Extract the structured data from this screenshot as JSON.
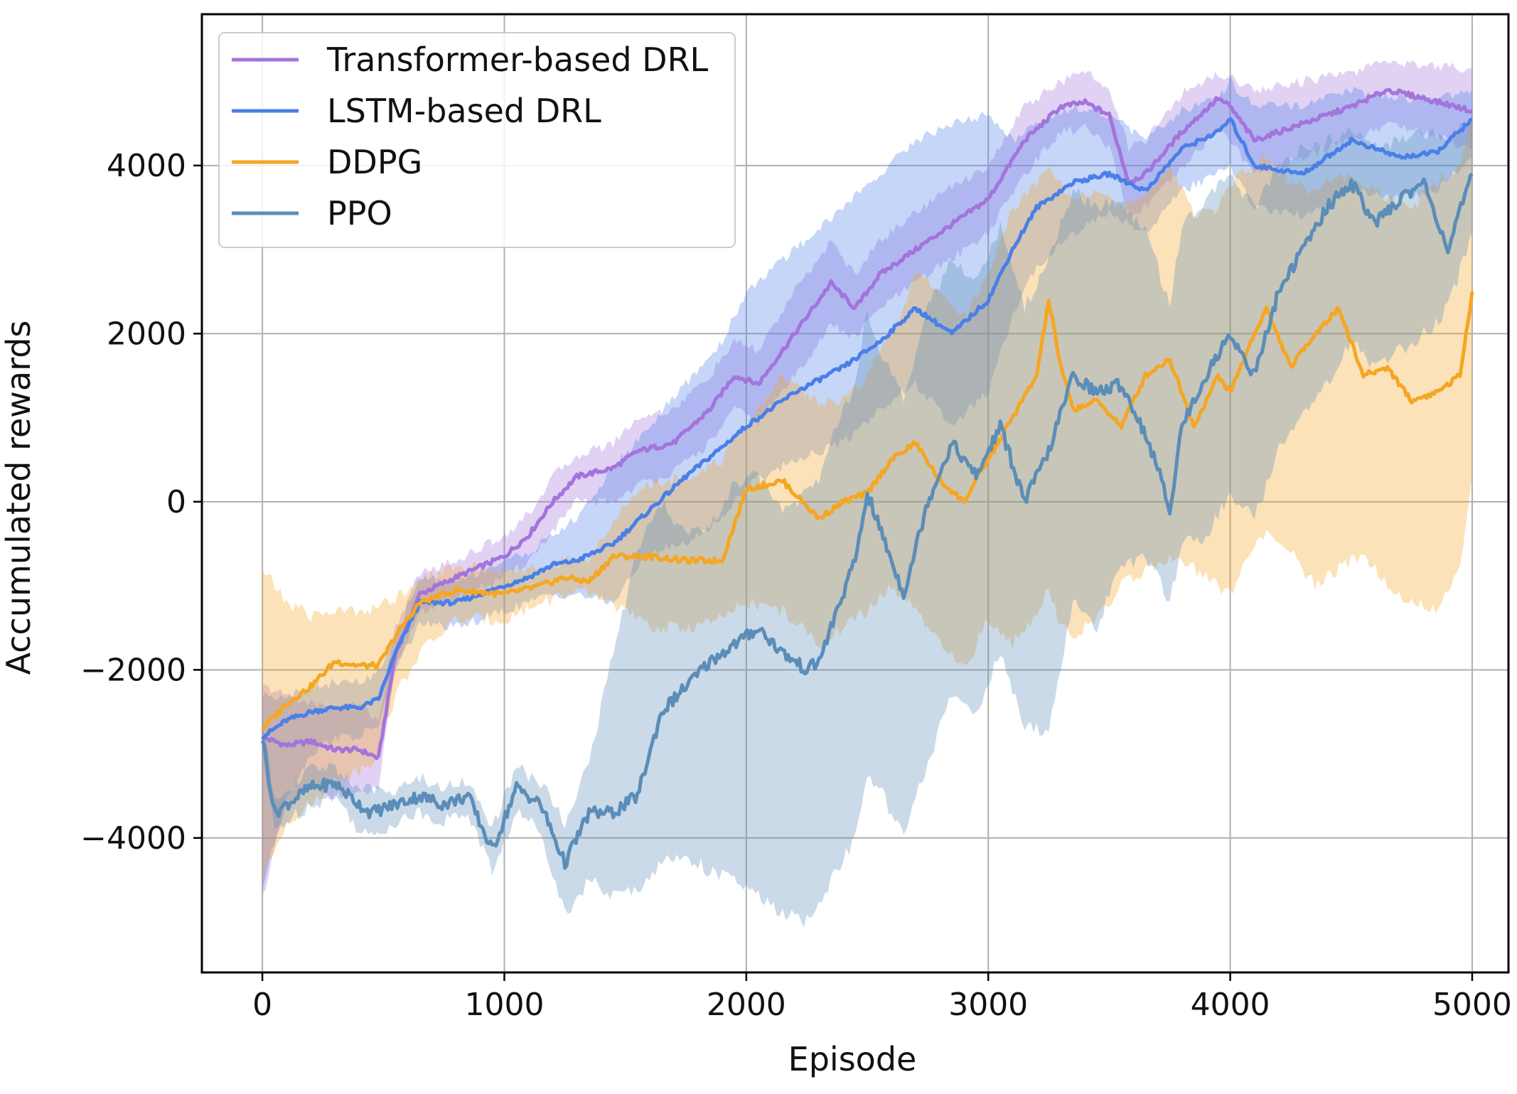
{
  "chart_data": {
    "type": "line",
    "title": "",
    "xlabel": "Episode",
    "ylabel": "Accumulated rewards",
    "xlim": [
      -250,
      5150
    ],
    "ylim": [
      -5600,
      5800
    ],
    "xticks": [
      0,
      1000,
      2000,
      3000,
      4000,
      5000
    ],
    "xtick_labels": [
      "0",
      "1000",
      "2000",
      "3000",
      "4000",
      "5000"
    ],
    "yticks": [
      -4000,
      -2000,
      0,
      2000,
      4000
    ],
    "ytick_labels": [
      "−4000",
      "−2000",
      "0",
      "2000",
      "4000"
    ],
    "grid": true,
    "legend_position": "top-left",
    "series": [
      {
        "name": "Transformer-based DRL",
        "color": "#a374dc",
        "x": [
          0,
          100,
          200,
          300,
          400,
          480,
          550,
          650,
          800,
          1000,
          1100,
          1200,
          1300,
          1450,
          1550,
          1700,
          1850,
          1950,
          2050,
          2200,
          2350,
          2450,
          2550,
          2700,
          2850,
          3000,
          3150,
          3300,
          3400,
          3500,
          3580,
          3650,
          3800,
          3950,
          4000,
          4100,
          4300,
          4500,
          4650,
          4800,
          5000
        ],
        "values": [
          -2800,
          -2900,
          -2850,
          -2950,
          -2950,
          -3050,
          -1800,
          -1100,
          -900,
          -650,
          -400,
          0,
          300,
          400,
          600,
          700,
          1100,
          1500,
          1400,
          2000,
          2600,
          2300,
          2700,
          3000,
          3300,
          3600,
          4300,
          4700,
          4750,
          4600,
          3800,
          3900,
          4400,
          4800,
          4700,
          4300,
          4500,
          4700,
          4900,
          4800,
          4650
        ],
        "band_lower": [
          -4700,
          -3600,
          -3400,
          -3500,
          -3500,
          -3400,
          -2000,
          -1300,
          -1150,
          -900,
          -700,
          -350,
          0,
          0,
          200,
          350,
          700,
          1100,
          950,
          1500,
          2100,
          1950,
          2300,
          2600,
          2900,
          3200,
          3900,
          4400,
          4450,
          4200,
          3400,
          3500,
          3950,
          4450,
          4300,
          3900,
          4100,
          4300,
          4500,
          4400,
          4200
        ],
        "band_upper": [
          -2200,
          -2300,
          -2400,
          -2450,
          -2400,
          -2600,
          -1500,
          -850,
          -700,
          -400,
          -150,
          300,
          550,
          700,
          1000,
          1100,
          1500,
          1900,
          1800,
          2500,
          3100,
          2700,
          3100,
          3450,
          3750,
          4000,
          4700,
          5000,
          5100,
          4950,
          4200,
          4300,
          4850,
          5100,
          5050,
          4900,
          5000,
          5100,
          5250,
          5200,
          5150
        ]
      },
      {
        "name": "LSTM-based DRL",
        "color": "#4a7fe8",
        "x": [
          0,
          100,
          200,
          300,
          400,
          480,
          550,
          650,
          800,
          1000,
          1100,
          1200,
          1300,
          1450,
          1600,
          1750,
          1900,
          2000,
          2200,
          2400,
          2550,
          2700,
          2850,
          3000,
          3100,
          3200,
          3350,
          3500,
          3650,
          3800,
          3950,
          4000,
          4100,
          4300,
          4500,
          4700,
          4850,
          5000
        ],
        "values": [
          -2800,
          -2600,
          -2500,
          -2450,
          -2450,
          -2350,
          -1800,
          -1200,
          -1200,
          -1000,
          -900,
          -750,
          -700,
          -500,
          -100,
          300,
          650,
          900,
          1300,
          1600,
          1900,
          2300,
          2000,
          2400,
          3000,
          3500,
          3800,
          3900,
          3700,
          4200,
          4400,
          4550,
          4000,
          3900,
          4300,
          4100,
          4150,
          4550
        ],
        "band_lower": [
          -4600,
          -3500,
          -3000,
          -2800,
          -2800,
          -2650,
          -2000,
          -1450,
          -1500,
          -1300,
          -1200,
          -1100,
          -1100,
          -1200,
          -600,
          -500,
          -200,
          200,
          500,
          700,
          1100,
          1400,
          900,
          1300,
          2200,
          2800,
          3200,
          3450,
          3200,
          3700,
          3900,
          4000,
          3500,
          3400,
          3700,
          3600,
          3700,
          4100
        ],
        "band_upper": [
          -2300,
          -2300,
          -2200,
          -2150,
          -2150,
          -2050,
          -1600,
          -900,
          -950,
          -700,
          -600,
          -400,
          -200,
          400,
          900,
          1400,
          1900,
          2500,
          3000,
          3500,
          3900,
          4300,
          4500,
          4600,
          4300,
          4500,
          4700,
          4600,
          4300,
          4650,
          4800,
          5000,
          4700,
          4700,
          4900,
          4800,
          4800,
          4900
        ]
      },
      {
        "name": "DDPG",
        "color": "#f5a623",
        "x": [
          0,
          100,
          200,
          300,
          400,
          480,
          550,
          650,
          800,
          1000,
          1150,
          1250,
          1350,
          1450,
          1600,
          1750,
          1900,
          2000,
          2150,
          2300,
          2400,
          2500,
          2600,
          2700,
          2800,
          2900,
          3000,
          3100,
          3200,
          3250,
          3300,
          3350,
          3450,
          3550,
          3650,
          3750,
          3850,
          3950,
          4000,
          4100,
          4150,
          4250,
          4350,
          4450,
          4550,
          4650,
          4750,
          4850,
          4950,
          5000
        ],
        "values": [
          -2700,
          -2400,
          -2200,
          -1900,
          -1950,
          -1950,
          -1600,
          -1200,
          -1050,
          -1100,
          -1000,
          -900,
          -950,
          -650,
          -650,
          -700,
          -700,
          150,
          250,
          -200,
          0,
          100,
          500,
          700,
          250,
          0,
          500,
          1000,
          1500,
          2400,
          1600,
          1100,
          1200,
          900,
          1500,
          1700,
          900,
          1500,
          1300,
          2000,
          2300,
          1600,
          2000,
          2300,
          1500,
          1600,
          1200,
          1300,
          1500,
          2500
        ],
        "band_lower": [
          -4500,
          -3800,
          -3600,
          -3300,
          -3200,
          -3000,
          -2300,
          -1800,
          -1400,
          -1400,
          -1200,
          -1100,
          -1100,
          -1200,
          -1500,
          -1500,
          -1400,
          -1200,
          -1300,
          -1700,
          -1500,
          -1300,
          -1000,
          -1300,
          -1700,
          -2000,
          -1400,
          -1700,
          -1300,
          -1000,
          -1500,
          -1600,
          -1400,
          -1000,
          -800,
          -700,
          -800,
          -1000,
          -1100,
          -500,
          -400,
          -600,
          -1000,
          -800,
          -600,
          -1000,
          -1200,
          -1300,
          -800,
          300
        ],
        "band_upper": [
          -800,
          -1200,
          -1350,
          -1300,
          -1300,
          -1250,
          -1150,
          -900,
          -800,
          -800,
          -800,
          -700,
          -700,
          -200,
          200,
          300,
          500,
          900,
          1500,
          1200,
          1200,
          1500,
          2000,
          2700,
          2500,
          2200,
          2700,
          3500,
          3800,
          4000,
          3800,
          3600,
          3700,
          3500,
          3700,
          4000,
          3400,
          3500,
          3800,
          4000,
          4100,
          3800,
          3700,
          3900,
          3800,
          3600,
          3500,
          3800,
          4000,
          4600
        ]
      },
      {
        "name": "PPO",
        "color": "#5b8db8",
        "x": [
          0,
          50,
          100,
          200,
          300,
          400,
          450,
          550,
          650,
          750,
          850,
          950,
          1050,
          1150,
          1250,
          1350,
          1450,
          1550,
          1650,
          1750,
          1850,
          1950,
          2050,
          2150,
          2250,
          2300,
          2350,
          2450,
          2500,
          2550,
          2650,
          2750,
          2850,
          2950,
          3050,
          3150,
          3250,
          3350,
          3450,
          3550,
          3650,
          3700,
          3750,
          3800,
          3900,
          4000,
          4100,
          4200,
          4300,
          4400,
          4500,
          4600,
          4700,
          4800,
          4900,
          5000
        ],
        "values": [
          -2800,
          -3700,
          -3600,
          -3400,
          -3350,
          -3600,
          -3700,
          -3600,
          -3500,
          -3600,
          -3500,
          -4150,
          -3400,
          -3600,
          -4300,
          -3700,
          -3700,
          -3500,
          -2500,
          -2200,
          -1900,
          -1700,
          -1500,
          -1800,
          -2000,
          -1900,
          -1500,
          -700,
          100,
          -300,
          -1100,
          0,
          700,
          300,
          900,
          0,
          600,
          1500,
          1300,
          1400,
          800,
          400,
          -100,
          900,
          1500,
          2000,
          1500,
          2500,
          3000,
          3500,
          3800,
          3300,
          3600,
          3800,
          3000,
          3900
        ],
        "band_lower": [
          -3000,
          -3900,
          -3800,
          -3600,
          -3500,
          -3900,
          -4000,
          -3800,
          -3700,
          -3800,
          -3700,
          -4400,
          -3700,
          -3900,
          -4900,
          -4500,
          -4700,
          -4600,
          -4300,
          -4200,
          -4400,
          -4500,
          -4700,
          -4900,
          -5000,
          -4800,
          -4500,
          -4000,
          -3300,
          -3400,
          -4000,
          -3100,
          -2300,
          -2500,
          -1800,
          -2700,
          -2700,
          -1200,
          -1500,
          -700,
          -700,
          -900,
          -1200,
          -500,
          -400,
          100,
          -200,
          600,
          1100,
          1400,
          1900,
          1600,
          1800,
          2000,
          2300,
          3200
        ],
        "band_upper": [
          -2600,
          -3500,
          -3400,
          -3200,
          -3150,
          -3400,
          -3450,
          -3400,
          -3300,
          -3400,
          -3300,
          -3900,
          -3150,
          -3350,
          -3800,
          -3100,
          -1800,
          -600,
          0,
          -400,
          -300,
          200,
          300,
          -100,
          100,
          300,
          800,
          1400,
          2300,
          1800,
          1200,
          2300,
          2900,
          2600,
          3300,
          2300,
          2900,
          3700,
          3500,
          3600,
          3200,
          2800,
          2300,
          3300,
          3600,
          3900,
          3500,
          4000,
          4200,
          4300,
          4400,
          4200,
          4300,
          4400,
          4300,
          4600
        ]
      }
    ]
  }
}
